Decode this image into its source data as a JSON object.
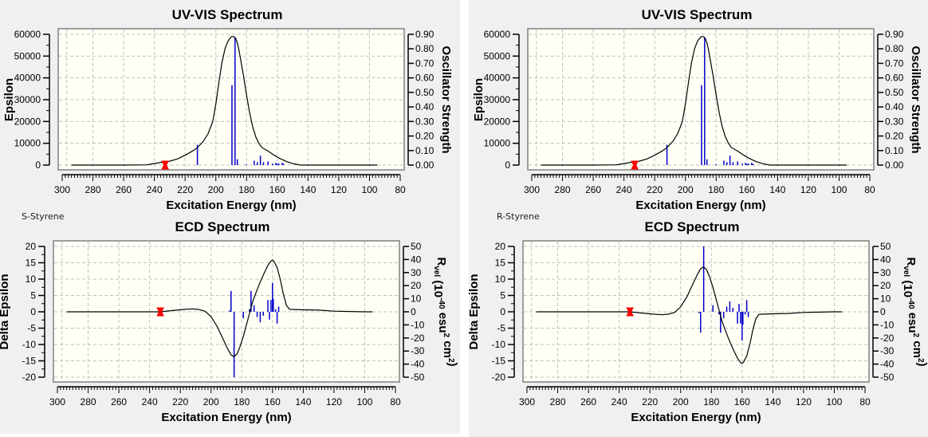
{
  "panels": [
    {
      "molecule_label": "S-Styrene",
      "uv": {
        "title": "UV-VIS Spectrum",
        "xlabel": "Excitation Energy (nm)",
        "ylabel": "Epsilon",
        "y2label": "Oscillator Strength"
      },
      "ecd": {
        "title": "ECD Spectrum",
        "xlabel": "Excitation Energy (nm)",
        "ylabel": "Delta Epsilon",
        "y2label": "R_vel (10^-40 esu^2 cm^2)"
      }
    },
    {
      "molecule_label": "R-Styrene",
      "uv": {
        "title": "UV-VIS Spectrum",
        "xlabel": "Excitation Energy (nm)",
        "ylabel": "Epsilon",
        "y2label": "Oscillator Strength"
      },
      "ecd": {
        "title": "ECD Spectrum",
        "xlabel": "Excitation Energy (nm)",
        "ylabel": "Delta Epsilon",
        "y2label": "R_vel (10^-40 esu^2 cm^2)"
      }
    }
  ],
  "colors": {
    "curve": "#000000",
    "sticks": "#0000cc",
    "marker": "#ff0000",
    "plot_bg": "#fffff6",
    "grid": "#c0c0c0"
  },
  "chart_data": [
    {
      "id": "uv-left",
      "type": "line",
      "title": "UV-VIS Spectrum",
      "xlabel": "Excitation Energy (nm)",
      "ylabel": "Epsilon",
      "y2label": "Oscillator Strength",
      "xlim": [
        300,
        80
      ],
      "ylim": [
        0,
        60000
      ],
      "y2lim": [
        0,
        0.9
      ],
      "xticks": [
        300,
        280,
        260,
        240,
        220,
        200,
        180,
        160,
        140,
        120,
        100,
        80
      ],
      "yticks": [
        0,
        10000,
        20000,
        30000,
        40000,
        50000,
        60000
      ],
      "y2ticks": [
        "0.00",
        "0.10",
        "0.20",
        "0.30",
        "0.40",
        "0.50",
        "0.60",
        "0.70",
        "0.80",
        "0.90"
      ],
      "grid": true,
      "curve": {
        "x": [
          294,
          260,
          245,
          240,
          235,
          230,
          225,
          220,
          215,
          212,
          208,
          205,
          202,
          200,
          198,
          196,
          194,
          192,
          190,
          189,
          188,
          187,
          186,
          185,
          184,
          182,
          180,
          178,
          176,
          174,
          172,
          170,
          166,
          162,
          158,
          154,
          150,
          146,
          144,
          140,
          120,
          100,
          95
        ],
        "y": [
          0,
          0,
          100,
          700,
          1300,
          1800,
          2800,
          4500,
          6500,
          8000,
          11000,
          14500,
          20000,
          28000,
          38000,
          47000,
          53500,
          57000,
          58800,
          59000,
          58800,
          58000,
          56000,
          53000,
          49000,
          41000,
          32000,
          24000,
          17500,
          13000,
          10000,
          8000,
          6400,
          4500,
          2900,
          1600,
          700,
          150,
          0,
          0,
          0,
          0,
          0
        ]
      },
      "sticks": {
        "x": [
          212,
          189.5,
          187.5,
          186,
          180,
          175,
          173,
          171,
          169,
          166,
          163,
          161,
          160,
          159,
          157,
          156
        ],
        "y": [
          0.14,
          0.55,
          0.88,
          0.04,
          0.005,
          0.03,
          0.02,
          0.065,
          0.02,
          0.025,
          0.01,
          0.015,
          0.01,
          0.01,
          0.015,
          0.01
        ]
      },
      "marker": {
        "x": 233,
        "y": 0
      }
    },
    {
      "id": "ecd-left",
      "type": "line",
      "title": "ECD Spectrum",
      "xlabel": "Excitation Energy (nm)",
      "ylabel": "Delta Epsilon",
      "y2label": "R_vel (10^-40 esu^2 cm^2)",
      "xlim": [
        300,
        80
      ],
      "ylim": [
        -20,
        20
      ],
      "y2lim": [
        -50,
        50
      ],
      "xticks": [
        300,
        280,
        260,
        240,
        220,
        200,
        180,
        160,
        140,
        120,
        100,
        80
      ],
      "yticks": [
        -20,
        -15,
        -10,
        -5,
        0,
        5,
        10,
        15,
        20
      ],
      "y2ticks": [
        -50,
        -40,
        -30,
        -20,
        -10,
        0,
        10,
        20,
        30,
        40,
        50
      ],
      "grid": true,
      "curve": {
        "x": [
          294,
          240,
          233,
          225,
          218,
          212,
          208,
          204,
          200,
          196,
          192,
          189,
          187,
          185,
          183,
          181,
          179,
          177,
          175,
          173,
          171,
          169,
          167,
          165,
          163,
          161,
          160,
          159,
          157,
          155,
          153,
          151,
          149,
          147,
          145,
          140,
          130,
          120,
          100,
          95
        ],
        "y": [
          0,
          0,
          0,
          0.4,
          0.7,
          0.9,
          0.7,
          0.2,
          -1.5,
          -4.5,
          -8.5,
          -11.5,
          -13.2,
          -13.7,
          -12.8,
          -10.5,
          -7.5,
          -4,
          -0.5,
          3,
          5.5,
          8,
          10.2,
          12.3,
          14.2,
          15.5,
          15.8,
          15.4,
          13.5,
          10,
          5.5,
          2,
          0.8,
          0.7,
          0.7,
          0.6,
          0.5,
          0.2,
          0,
          0
        ]
      },
      "sticks": {
        "x": [
          188,
          187,
          185,
          179,
          175,
          174,
          172,
          170,
          168,
          166,
          163,
          162,
          161,
          160,
          159.5,
          158,
          157,
          156
        ],
        "y": [
          1,
          16,
          -50,
          -5,
          2,
          16,
          5,
          -4,
          -8,
          -3,
          9,
          -6,
          9,
          22,
          10,
          2,
          -9,
          4
        ]
      },
      "marker": {
        "x": 233,
        "y": 0
      }
    },
    {
      "id": "uv-right",
      "type": "line",
      "title": "UV-VIS Spectrum",
      "xlabel": "Excitation Energy (nm)",
      "ylabel": "Epsilon",
      "y2label": "Oscillator Strength",
      "xlim": [
        300,
        80
      ],
      "ylim": [
        0,
        60000
      ],
      "y2lim": [
        0,
        0.9
      ],
      "xticks": [
        300,
        280,
        260,
        240,
        220,
        200,
        180,
        160,
        140,
        120,
        100,
        80
      ],
      "yticks": [
        0,
        10000,
        20000,
        30000,
        40000,
        50000,
        60000
      ],
      "y2ticks": [
        "0.00",
        "0.10",
        "0.20",
        "0.30",
        "0.40",
        "0.50",
        "0.60",
        "0.70",
        "0.80",
        "0.90"
      ],
      "grid": true,
      "curve": {
        "x": [
          294,
          260,
          245,
          240,
          235,
          230,
          225,
          220,
          215,
          212,
          208,
          205,
          202,
          200,
          198,
          196,
          194,
          192,
          190,
          189,
          188,
          187,
          186,
          185,
          184,
          182,
          180,
          178,
          176,
          174,
          172,
          170,
          166,
          162,
          158,
          154,
          150,
          146,
          144,
          140,
          120,
          100,
          95
        ],
        "y": [
          0,
          0,
          100,
          700,
          1300,
          1800,
          2800,
          4500,
          6500,
          8000,
          11000,
          14500,
          20000,
          28000,
          38000,
          47000,
          53500,
          57000,
          58800,
          59000,
          58800,
          58000,
          56000,
          53000,
          49000,
          41000,
          32000,
          24000,
          17500,
          13000,
          10000,
          8000,
          6400,
          4500,
          2900,
          1600,
          700,
          150,
          0,
          0,
          0,
          0,
          0
        ]
      },
      "sticks": {
        "x": [
          212,
          189.5,
          187.5,
          186,
          180,
          175,
          173,
          171,
          169,
          166,
          163,
          161,
          160,
          159,
          157,
          156
        ],
        "y": [
          0.14,
          0.55,
          0.88,
          0.04,
          0.005,
          0.03,
          0.02,
          0.065,
          0.02,
          0.025,
          0.01,
          0.015,
          0.01,
          0.01,
          0.015,
          0.01
        ]
      },
      "marker": {
        "x": 233,
        "y": 0
      }
    },
    {
      "id": "ecd-right",
      "type": "line",
      "title": "ECD Spectrum",
      "xlabel": "Excitation Energy (nm)",
      "ylabel": "Delta Epsilon",
      "y2label": "R_vel (10^-40 esu^2 cm^2)",
      "xlim": [
        300,
        80
      ],
      "ylim": [
        -20,
        20
      ],
      "y2lim": [
        -50,
        50
      ],
      "xticks": [
        300,
        280,
        260,
        240,
        220,
        200,
        180,
        160,
        140,
        120,
        100,
        80
      ],
      "yticks": [
        -20,
        -15,
        -10,
        -5,
        0,
        5,
        10,
        15,
        20
      ],
      "y2ticks": [
        -50,
        -40,
        -30,
        -20,
        -10,
        0,
        10,
        20,
        30,
        40,
        50
      ],
      "grid": true,
      "curve": {
        "x": [
          294,
          240,
          233,
          225,
          218,
          212,
          208,
          204,
          200,
          196,
          192,
          189,
          187,
          185,
          183,
          181,
          179,
          177,
          175,
          173,
          171,
          169,
          167,
          165,
          163,
          161,
          160,
          159,
          157,
          155,
          153,
          151,
          149,
          147,
          145,
          140,
          130,
          120,
          100,
          95
        ],
        "y": [
          0,
          0,
          0,
          -0.4,
          -0.7,
          -0.9,
          -0.7,
          -0.2,
          1.5,
          4.5,
          8.5,
          11.5,
          13.2,
          13.7,
          12.8,
          10.5,
          7.5,
          4,
          0.5,
          -3,
          -5.5,
          -8,
          -10.2,
          -12.3,
          -14.2,
          -15.5,
          -15.8,
          -15.4,
          -13.5,
          -10,
          -5.5,
          -2,
          -0.8,
          -0.7,
          -0.7,
          -0.6,
          -0.5,
          -0.2,
          0,
          0
        ]
      },
      "sticks": {
        "x": [
          188,
          187,
          185,
          179,
          175,
          174,
          172,
          170,
          168,
          166,
          163,
          162,
          161,
          160,
          159.5,
          158,
          157,
          156
        ],
        "y": [
          -1,
          -16,
          50,
          5,
          -2,
          -16,
          -5,
          4,
          8,
          3,
          -9,
          6,
          -9,
          -22,
          -10,
          -2,
          9,
          -4
        ]
      },
      "marker": {
        "x": 233,
        "y": 0
      }
    }
  ]
}
